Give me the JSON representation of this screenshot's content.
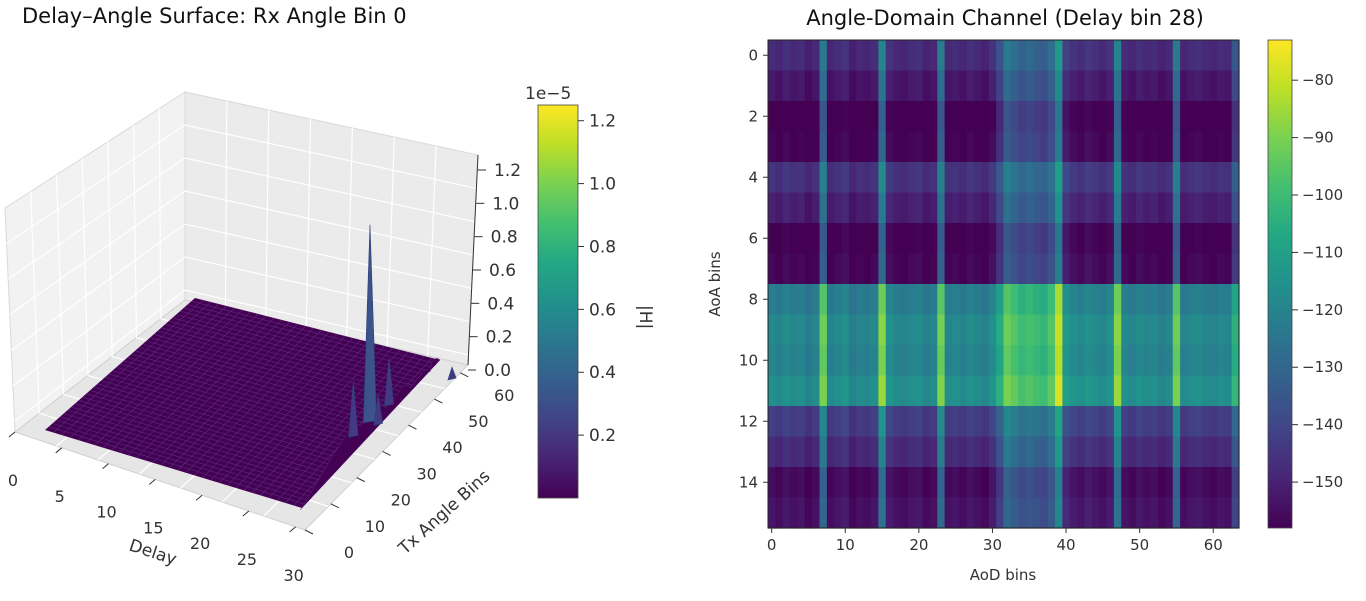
{
  "chart_data": [
    {
      "type": "surface3d",
      "title": "Delay–Angle Surface: Rx Angle Bin 0",
      "xlabel": "Delay",
      "ylabel": "Tx Angle Bins",
      "zlabel": "",
      "xlim": [
        0,
        31
      ],
      "ylim": [
        0,
        63
      ],
      "zlim": [
        0,
        1.25e-05
      ],
      "x_ticks": [
        "0",
        "5",
        "10",
        "15",
        "20",
        "25",
        "30"
      ],
      "y_ticks": [
        "0",
        "10",
        "20",
        "30",
        "40",
        "50",
        "60"
      ],
      "z_ticks": [
        "0.0",
        "0.2",
        "0.4",
        "0.6",
        "0.8",
        "1.0",
        "1.2"
      ],
      "z_offset_label": "1e−5",
      "surface_baseline": 0,
      "peaks": [
        {
          "delay": 28,
          "tx_bin": 39,
          "value": 1.1e-05
        },
        {
          "delay": 28,
          "tx_bin": 32,
          "value": 3e-06
        },
        {
          "delay": 28,
          "tx_bin": 47,
          "value": 2.5e-06
        },
        {
          "delay": 29,
          "tx_bin": 39,
          "value": 1.5e-06
        },
        {
          "delay": 31,
          "tx_bin": 63,
          "value": 5e-07
        }
      ],
      "colorbar": {
        "label": "|H|",
        "offset_label": "1e−5",
        "range": [
          0.0,
          1.25
        ],
        "ticks": [
          "0.2",
          "0.4",
          "0.6",
          "0.8",
          "1.0",
          "1.2"
        ],
        "colormap": "viridis"
      },
      "grid": true
    },
    {
      "type": "heatmap",
      "title": "Angle-Domain Channel (Delay bin 28)",
      "xlabel": "AoD bins",
      "ylabel": "AoA bins",
      "x_range": [
        0,
        63
      ],
      "y_range": [
        0,
        15
      ],
      "x_ticks": [
        "0",
        "10",
        "20",
        "30",
        "40",
        "50",
        "60"
      ],
      "y_ticks": [
        "0",
        "2",
        "4",
        "6",
        "8",
        "10",
        "12",
        "14"
      ],
      "row_levels_db": [
        -140,
        -145,
        -152,
        -150,
        -138,
        -143,
        -151,
        -149,
        -114,
        -110,
        -112,
        -108,
        -135,
        -140,
        -148,
        -146
      ],
      "col_levels_db": [
        -8,
        -10,
        -7,
        -9,
        -8,
        -12,
        -9,
        18,
        -10,
        -8,
        -6,
        -12,
        -9,
        -10,
        -8,
        22,
        -6,
        -9,
        -10,
        -8,
        -7,
        -11,
        -9,
        19,
        -9,
        -8,
        -10,
        -7,
        -9,
        -11,
        -6,
        4,
        18,
        14,
        10,
        12,
        10,
        8,
        14,
        30,
        -2,
        -6,
        -8,
        -5,
        -7,
        -9,
        -6,
        22,
        -8,
        -10,
        -7,
        -9,
        -8,
        -11,
        -9,
        18,
        -10,
        -8,
        -7,
        -9,
        -10,
        -8,
        -9,
        6
      ],
      "colorbar": {
        "range": [
          -158,
          -73
        ],
        "ticks": [
          "−80",
          "−90",
          "−100",
          "−110",
          "−120",
          "−130",
          "−140",
          "−150"
        ],
        "colormap": "viridis"
      }
    }
  ]
}
